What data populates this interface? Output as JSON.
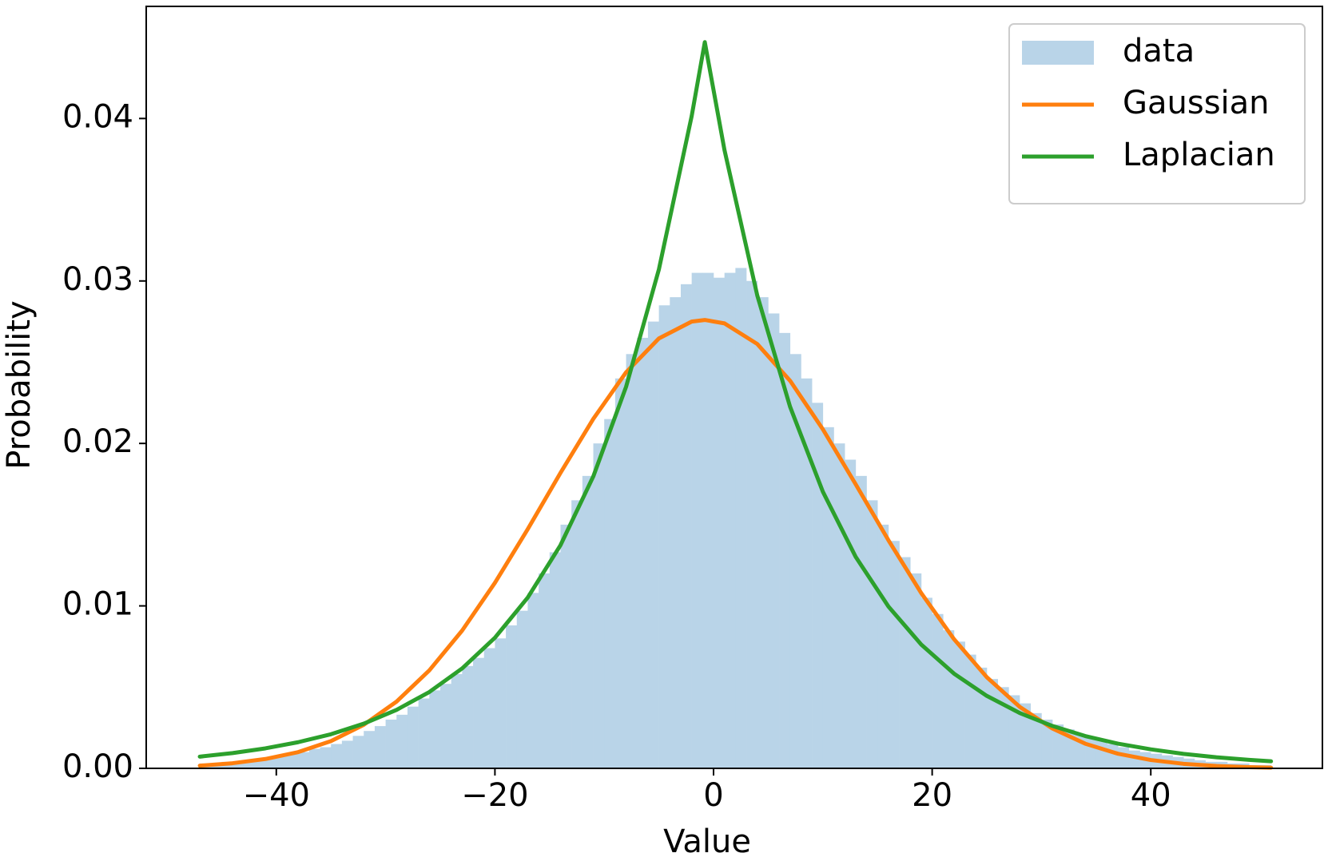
{
  "chart_data": {
    "type": "histogram",
    "xlabel": "Value",
    "ylabel": "Probability",
    "xlim": [
      -51.9,
      55.7
    ],
    "ylim": [
      0,
      0.0469
    ],
    "xticks": [
      {
        "value": -40,
        "label": "−40"
      },
      {
        "value": -20,
        "label": "−20"
      },
      0,
      20,
      40
    ],
    "yticks": [
      {
        "value": 0,
        "label": "0.00"
      },
      {
        "value": 0.01,
        "label": "0.01"
      },
      {
        "value": 0.02,
        "label": "0.02"
      },
      {
        "value": 0.03,
        "label": "0.03"
      },
      {
        "value": 0.04,
        "label": "0.04"
      }
    ],
    "legend": "upper right",
    "bins": [
      -47,
      -46,
      -45,
      -44,
      -43,
      -42,
      -41,
      -40,
      -39,
      -38,
      -37,
      -36,
      -35,
      -34,
      -33,
      -32,
      -31,
      -30,
      -29,
      -28,
      -27,
      -26,
      -25,
      -24,
      -23,
      -22,
      -21,
      -20,
      -19,
      -18,
      -17,
      -16,
      -15,
      -14,
      -13,
      -12,
      -11,
      -10,
      -9,
      -8,
      -7,
      -6,
      -5,
      -4,
      -3,
      -2,
      -1,
      0,
      1,
      2,
      3,
      4,
      5,
      6,
      7,
      8,
      9,
      10,
      11,
      12,
      13,
      14,
      15,
      16,
      17,
      18,
      19,
      20,
      21,
      22,
      23,
      24,
      25,
      26,
      27,
      28,
      29,
      30,
      31,
      32,
      33,
      34,
      35,
      36,
      37,
      38,
      39,
      40,
      41,
      42,
      43,
      44,
      45,
      46,
      47,
      48,
      49,
      50,
      51
    ],
    "series": [
      {
        "name": "data",
        "type": "histogram",
        "color": "#b9d4e8",
        "values": [
          0.0003,
          0.0003,
          0.0004,
          0.0004,
          0.0005,
          0.0006,
          0.0007,
          0.0008,
          0.0009,
          0.001,
          0.0012,
          0.0013,
          0.0015,
          0.0017,
          0.002,
          0.0023,
          0.0026,
          0.003,
          0.0033,
          0.0038,
          0.0043,
          0.0048,
          0.0052,
          0.0058,
          0.0063,
          0.0068,
          0.0074,
          0.008,
          0.0088,
          0.0097,
          0.0108,
          0.012,
          0.0133,
          0.015,
          0.0165,
          0.018,
          0.02,
          0.0215,
          0.024,
          0.0255,
          0.0265,
          0.0275,
          0.0285,
          0.029,
          0.0298,
          0.0305,
          0.0305,
          0.0302,
          0.0305,
          0.0308,
          0.03,
          0.029,
          0.028,
          0.0268,
          0.0255,
          0.024,
          0.0225,
          0.021,
          0.02,
          0.019,
          0.018,
          0.0165,
          0.015,
          0.014,
          0.013,
          0.012,
          0.0105,
          0.0095,
          0.0085,
          0.0078,
          0.007,
          0.0062,
          0.0055,
          0.005,
          0.0045,
          0.004,
          0.0034,
          0.003,
          0.0027,
          0.0024,
          0.0021,
          0.0019,
          0.0017,
          0.0015,
          0.0013,
          0.0011,
          0.001,
          0.0009,
          0.0008,
          0.0007,
          0.0006,
          0.0005,
          0.0004,
          0.0004,
          0.0003,
          0.0003,
          0.0002,
          0.0002
        ]
      },
      {
        "name": "Gaussian",
        "type": "line",
        "color": "#ff7f0e",
        "x": [
          -47,
          -44,
          -41,
          -38,
          -35,
          -32,
          -29,
          -26,
          -23,
          -20,
          -17,
          -14,
          -11,
          -8,
          -5,
          -2,
          -0.8,
          1,
          4,
          7,
          10,
          13,
          16,
          19,
          22,
          25,
          28,
          31,
          34,
          37,
          40,
          43,
          46,
          49,
          51
        ],
        "values": [
          0.000166,
          0.000316,
          0.000576,
          0.001,
          0.00168,
          0.00268,
          0.00411,
          0.00603,
          0.00848,
          0.01142,
          0.01472,
          0.01819,
          0.02151,
          0.02438,
          0.02646,
          0.0275,
          0.0276,
          0.02739,
          0.02612,
          0.02386,
          0.02087,
          0.01749,
          0.01404,
          0.01079,
          0.00795,
          0.00561,
          0.00379,
          0.00245,
          0.00152,
          0.0009,
          0.000513,
          0.000279,
          0.000145,
          7.27e-05,
          4.47e-05
        ]
      },
      {
        "name": "Laplacian",
        "type": "line",
        "color": "#2ca02c",
        "x": [
          -47,
          -44,
          -41,
          -38,
          -35,
          -32,
          -29,
          -26,
          -23,
          -20,
          -17,
          -14,
          -11,
          -8,
          -5,
          -2,
          -0.8,
          1,
          4,
          7,
          10,
          13,
          16,
          19,
          22,
          25,
          28,
          31,
          34,
          37,
          40,
          43,
          46,
          49,
          51
        ],
        "values": [
          0.00072,
          0.000941,
          0.00123,
          0.00161,
          0.0021,
          0.00275,
          0.0036,
          0.0047,
          0.00615,
          0.00804,
          0.01051,
          0.01374,
          0.01797,
          0.02349,
          0.03071,
          0.04015,
          0.0447,
          0.03806,
          0.02911,
          0.02226,
          0.01703,
          0.01302,
          0.00996,
          0.00762,
          0.00583,
          0.00446,
          0.00341,
          0.00261,
          0.00199,
          0.00152,
          0.00117,
          0.000892,
          0.000682,
          0.000522,
          0.000436
        ]
      }
    ]
  }
}
